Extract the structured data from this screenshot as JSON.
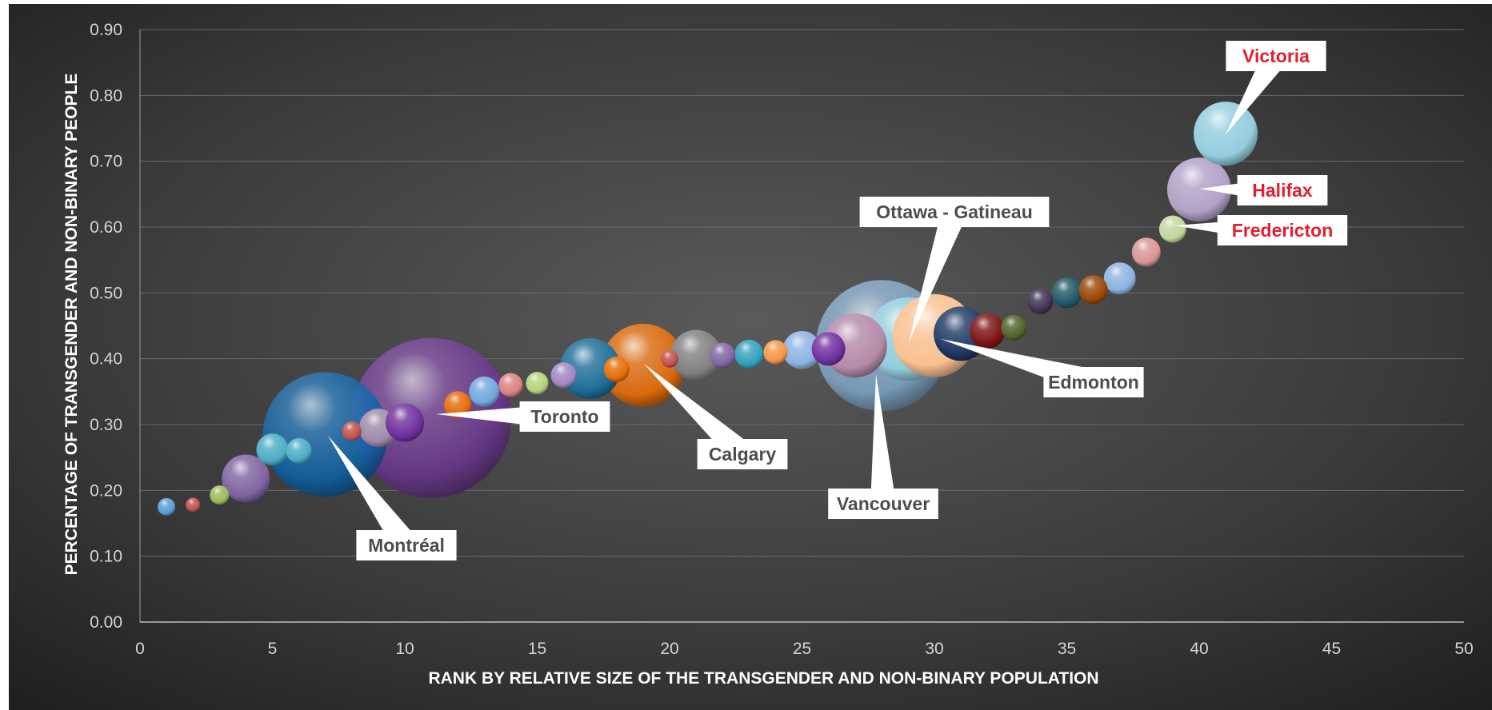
{
  "chart_data": {
    "type": "scatter",
    "subtype": "bubble",
    "title": "",
    "xlabel": "RANK BY RELATIVE SIZE OF THE TRANSGENDER AND NON-BINARY POPULATION",
    "ylabel": "PERCENTAGE OF TRANSGENDER AND NON-BINARY PEOPLE",
    "xlim": [
      0,
      50
    ],
    "ylim": [
      0,
      0.9
    ],
    "xticks": [
      "0",
      "5",
      "10",
      "15",
      "20",
      "25",
      "30",
      "35",
      "40",
      "45",
      "50"
    ],
    "yticks": [
      "0.00",
      "0.10",
      "0.20",
      "0.30",
      "0.40",
      "0.50",
      "0.60",
      "0.70",
      "0.80",
      "0.90"
    ],
    "grid": "horizontal",
    "legend": "none",
    "points": [
      {
        "x": 1,
        "y": 0.175,
        "size": 11,
        "color": "#5b9bd5"
      },
      {
        "x": 2,
        "y": 0.178,
        "size": 9,
        "color": "#c0504d"
      },
      {
        "x": 3,
        "y": 0.193,
        "size": 12,
        "color": "#9bbb59"
      },
      {
        "x": 4,
        "y": 0.218,
        "size": 30,
        "color": "#8064a2"
      },
      {
        "x": 5,
        "y": 0.262,
        "size": 20,
        "color": "#4bacc6"
      },
      {
        "x": 6,
        "y": 0.26,
        "size": 16,
        "color": "#4bacc6"
      },
      {
        "x": 7,
        "y": 0.285,
        "size": 78,
        "color": "#0b63a8"
      },
      {
        "x": 8,
        "y": 0.29,
        "size": 12,
        "color": "#c0504d"
      },
      {
        "x": 9,
        "y": 0.295,
        "size": 24,
        "color": "#9e8aa8"
      },
      {
        "x": 10,
        "y": 0.303,
        "size": 24,
        "color": "#7030a0"
      },
      {
        "x": 11,
        "y": 0.31,
        "size": 100,
        "color": "#6b3590"
      },
      {
        "x": 12,
        "y": 0.33,
        "size": 17,
        "color": "#e36c09"
      },
      {
        "x": 13,
        "y": 0.35,
        "size": 19,
        "color": "#6fa8dc"
      },
      {
        "x": 14,
        "y": 0.36,
        "size": 15,
        "color": "#d9827f"
      },
      {
        "x": 15,
        "y": 0.363,
        "size": 14,
        "color": "#b5d27a"
      },
      {
        "x": 16,
        "y": 0.375,
        "size": 16,
        "color": "#9f88c4"
      },
      {
        "x": 17,
        "y": 0.385,
        "size": 38,
        "color": "#1f6e99"
      },
      {
        "x": 18,
        "y": 0.384,
        "size": 16,
        "color": "#e36c09"
      },
      {
        "x": 19,
        "y": 0.39,
        "size": 52,
        "color": "#d8690d"
      },
      {
        "x": 20,
        "y": 0.4,
        "size": 11,
        "color": "#c0504d"
      },
      {
        "x": 21,
        "y": 0.405,
        "size": 32,
        "color": "#7f7f7f"
      },
      {
        "x": 22,
        "y": 0.405,
        "size": 16,
        "color": "#8064a2"
      },
      {
        "x": 23,
        "y": 0.407,
        "size": 18,
        "color": "#31a1bd"
      },
      {
        "x": 24,
        "y": 0.41,
        "size": 15,
        "color": "#f79646"
      },
      {
        "x": 25,
        "y": 0.413,
        "size": 24,
        "color": "#8db3e2"
      },
      {
        "x": 26,
        "y": 0.415,
        "size": 21,
        "color": "#7030a0"
      },
      {
        "x": 27,
        "y": 0.42,
        "size": 40,
        "color": "#b48aa8"
      },
      {
        "x": 28,
        "y": 0.42,
        "size": 82,
        "color": "#7ea6c8"
      },
      {
        "x": 29,
        "y": 0.43,
        "size": 52,
        "color": "#92cddc"
      },
      {
        "x": 30,
        "y": 0.435,
        "size": 52,
        "color": "#fac090"
      },
      {
        "x": 31,
        "y": 0.438,
        "size": 34,
        "color": "#1f3864"
      },
      {
        "x": 32,
        "y": 0.442,
        "size": 22,
        "color": "#7b1414"
      },
      {
        "x": 33,
        "y": 0.447,
        "size": 16,
        "color": "#4f6228"
      },
      {
        "x": 34,
        "y": 0.487,
        "size": 16,
        "color": "#403151"
      },
      {
        "x": 35,
        "y": 0.5,
        "size": 19,
        "color": "#215868"
      },
      {
        "x": 36,
        "y": 0.505,
        "size": 18,
        "color": "#984806"
      },
      {
        "x": 37,
        "y": 0.522,
        "size": 20,
        "color": "#8db3e2"
      },
      {
        "x": 38,
        "y": 0.562,
        "size": 18,
        "color": "#d99694"
      },
      {
        "x": 39,
        "y": 0.597,
        "size": 17,
        "color": "#c3d69b"
      },
      {
        "x": 40,
        "y": 0.657,
        "size": 40,
        "color": "#b2a1c7"
      },
      {
        "x": 41,
        "y": 0.742,
        "size": 40,
        "color": "#93cddd"
      }
    ],
    "labels": [
      {
        "text": "Victoria",
        "x": 41,
        "y": 0.742,
        "color": "#e0202e"
      },
      {
        "text": "Halifax",
        "x": 40,
        "y": 0.657,
        "color": "#e0202e"
      },
      {
        "text": "Fredericton",
        "x": 39,
        "y": 0.597,
        "color": "#e0202e"
      },
      {
        "text": "Ottawa - Gatineau",
        "x": 29,
        "y": 0.43,
        "color": "#4d4d4d"
      },
      {
        "text": "Edmonton",
        "x": 31,
        "y": 0.438,
        "color": "#4d4d4d"
      },
      {
        "text": "Vancouver",
        "x": 28,
        "y": 0.42,
        "color": "#4d4d4d"
      },
      {
        "text": "Calgary",
        "x": 19,
        "y": 0.39,
        "color": "#4d4d4d"
      },
      {
        "text": "Toronto",
        "x": 11,
        "y": 0.31,
        "color": "#4d4d4d"
      },
      {
        "text": "Montréal",
        "x": 7,
        "y": 0.285,
        "color": "#4d4d4d"
      }
    ]
  }
}
